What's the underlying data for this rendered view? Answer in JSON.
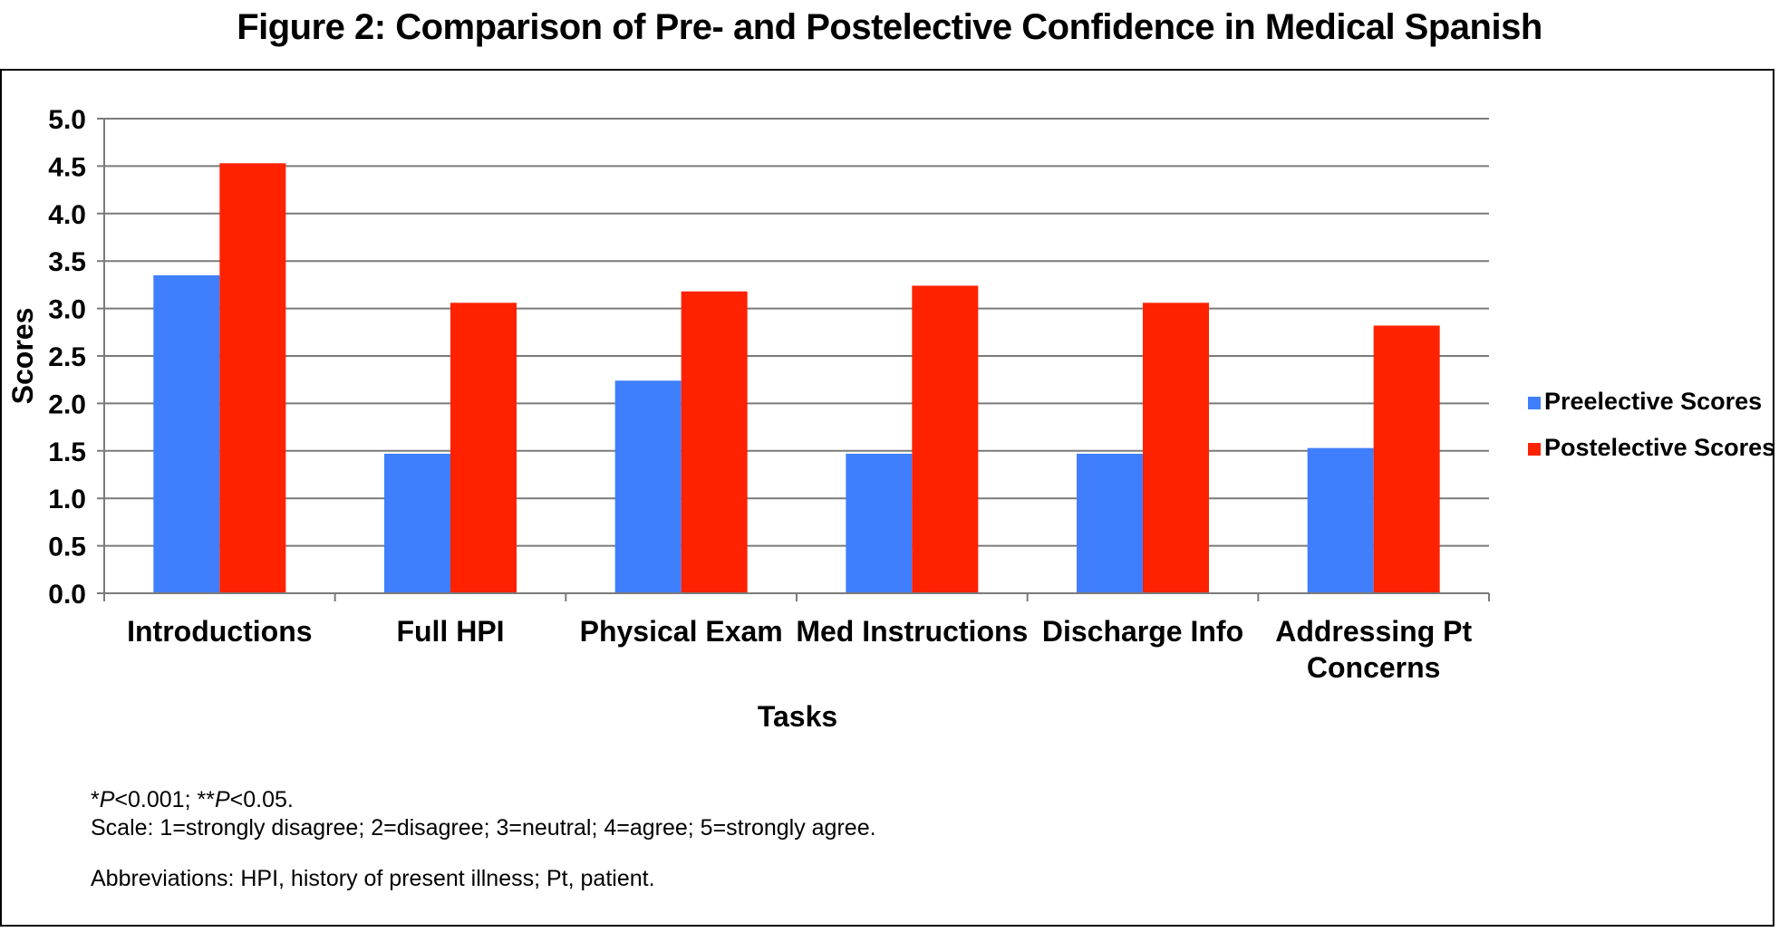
{
  "figure_title": "Figure 2: Comparison of Pre- and Postelective Confidence in Medical Spanish",
  "chart_data": {
    "type": "bar",
    "xlabel": "Tasks",
    "ylabel": "Scores",
    "ylim": [
      0,
      5
    ],
    "yticks": [
      "0.0",
      "0.5",
      "1.0",
      "1.5",
      "2.0",
      "2.5",
      "3.0",
      "3.5",
      "4.0",
      "4.5",
      "5.0"
    ],
    "ytick_values": [
      0,
      0.5,
      1,
      1.5,
      2,
      2.5,
      3,
      3.5,
      4,
      4.5,
      5
    ],
    "grid": true,
    "legend_position": "right",
    "categories": [
      [
        "Introductions"
      ],
      [
        "Full HPI"
      ],
      [
        "Physical Exam"
      ],
      [
        "Med Instructions"
      ],
      [
        "Discharge Info"
      ],
      [
        "Addressing Pt",
        "Concerns"
      ]
    ],
    "series": [
      {
        "name": "Preelective Scores",
        "color": "#3f7ffd",
        "values": [
          3.35,
          1.47,
          2.24,
          1.47,
          1.47,
          1.53
        ]
      },
      {
        "name": "Postelective Scores",
        "color": "#ff2200",
        "values": [
          4.53,
          3.06,
          3.18,
          3.24,
          3.06,
          2.82
        ]
      }
    ]
  },
  "notes": {
    "significance": [
      "*",
      "P",
      "<0.001; **",
      "P",
      "<0.05."
    ],
    "scale": "Scale: 1=strongly disagree; 2=disagree; 3=neutral; 4=agree; 5=strongly agree.",
    "abbreviations": "Abbreviations: HPI, history of present illness; Pt, patient."
  }
}
